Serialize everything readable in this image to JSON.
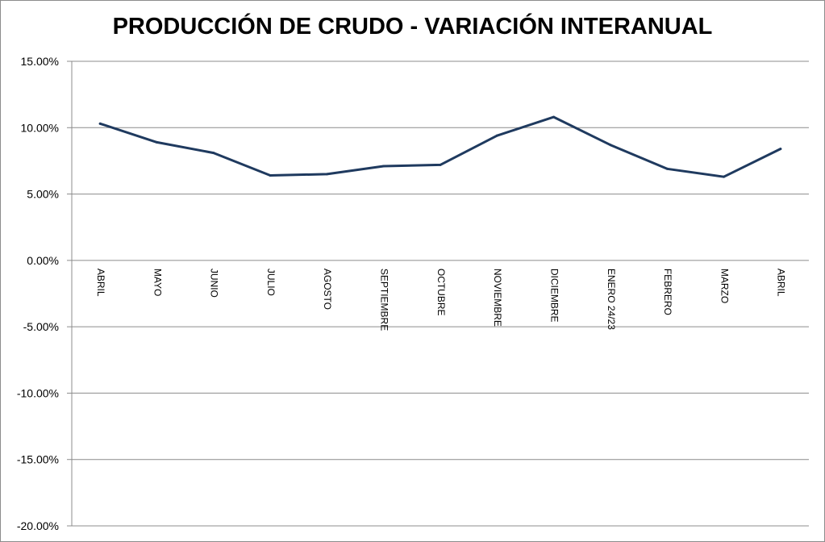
{
  "chart_data": {
    "type": "line",
    "title": "PRODUCCIÓN DE CRUDO - VARIACIÓN INTERANUAL",
    "xlabel": "",
    "ylabel": "",
    "categories": [
      "ABRIL",
      "MAYO",
      "JUNIO",
      "JULIO",
      "AGOSTO",
      "SEPTIEMBRE",
      "OCTUBRE",
      "NOVIEMBRE",
      "DICIEMBRE",
      "ENERO 24/23",
      "FEBRERO",
      "MARZO",
      "ABRIL"
    ],
    "series": [
      {
        "values": [
          10.3,
          8.9,
          8.1,
          6.4,
          6.5,
          7.1,
          7.2,
          9.4,
          10.8,
          8.7,
          6.9,
          6.3,
          8.4
        ],
        "color": "#1f3a5f"
      }
    ],
    "ylim": [
      -20,
      15
    ],
    "yticks": [
      15,
      10,
      5,
      0,
      -5,
      -10,
      -15,
      -20
    ],
    "ytick_labels": [
      "15.00%",
      "10.00%",
      "5.00%",
      "0.00%",
      "-5.00%",
      "-10.00%",
      "-15.00%",
      "-20.00%"
    ],
    "grid": true,
    "legend": "none"
  }
}
